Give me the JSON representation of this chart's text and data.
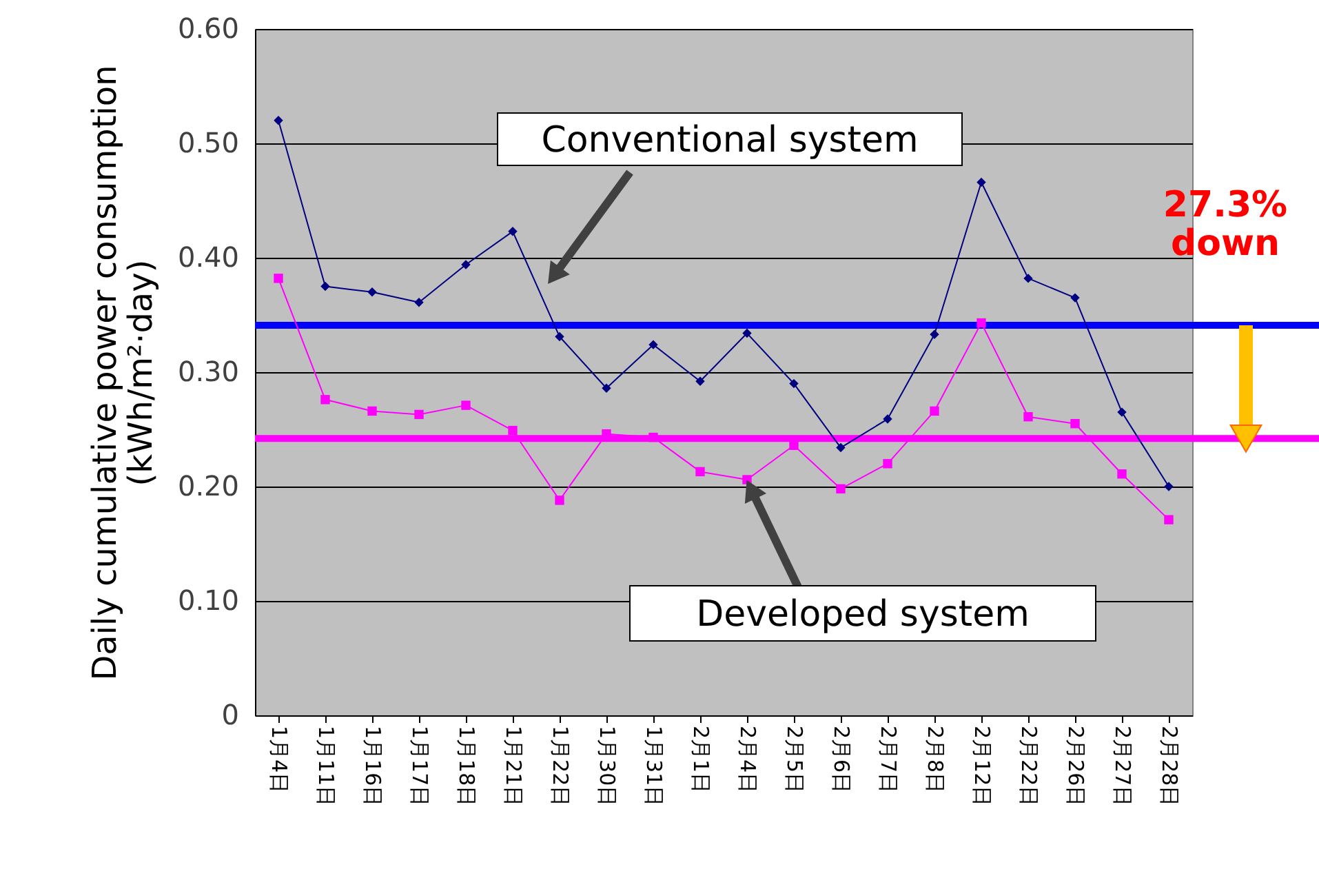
{
  "chart_data": {
    "type": "line",
    "ylabel": "Daily cumulative power consumption\n(kWh/m²·day)",
    "categories": [
      "1月4日",
      "1月11日",
      "1月16日",
      "1月17日",
      "1月18日",
      "1月21日",
      "1月22日",
      "1月30日",
      "1月31日",
      "2月1日",
      "2月4日",
      "2月5日",
      "2月6日",
      "2月7日",
      "2月8日",
      "2月12日",
      "2月22日",
      "2月26日",
      "2月27日",
      "2月28日"
    ],
    "series": [
      {
        "name": "Conventional system",
        "color": "#000080",
        "marker": "diamond",
        "values": [
          0.52,
          0.375,
          0.37,
          0.361,
          0.394,
          0.423,
          0.331,
          0.286,
          0.324,
          0.292,
          0.334,
          0.29,
          0.234,
          0.259,
          0.333,
          0.466,
          0.382,
          0.365,
          0.265,
          0.2
        ]
      },
      {
        "name": "Developed system",
        "color": "#ff00ff",
        "marker": "square",
        "values": [
          0.382,
          0.276,
          0.266,
          0.263,
          0.271,
          0.249,
          0.188,
          0.246,
          0.243,
          0.213,
          0.206,
          0.236,
          0.198,
          0.22,
          0.266,
          0.343,
          0.261,
          0.255,
          0.211,
          0.171
        ]
      }
    ],
    "ylim": [
      0,
      0.6
    ],
    "yticks": [
      0,
      {
        "value": 0.1,
        "label": "0.10"
      },
      {
        "value": 0.2,
        "label": "0.20"
      },
      {
        "value": 0.3,
        "label": "0.30"
      },
      {
        "value": 0.4,
        "label": "0.40"
      },
      {
        "value": 0.5,
        "label": "0.50"
      },
      {
        "value": 0.6,
        "label": "0.60"
      }
    ],
    "grid": "y",
    "legend": false,
    "ref_lines": [
      {
        "axis": "y",
        "value": 0.341,
        "color": "#0000ff"
      },
      {
        "axis": "y",
        "value": 0.242,
        "color": "#ff00ff"
      }
    ],
    "annotations": [
      "27.3% down"
    ]
  }
}
